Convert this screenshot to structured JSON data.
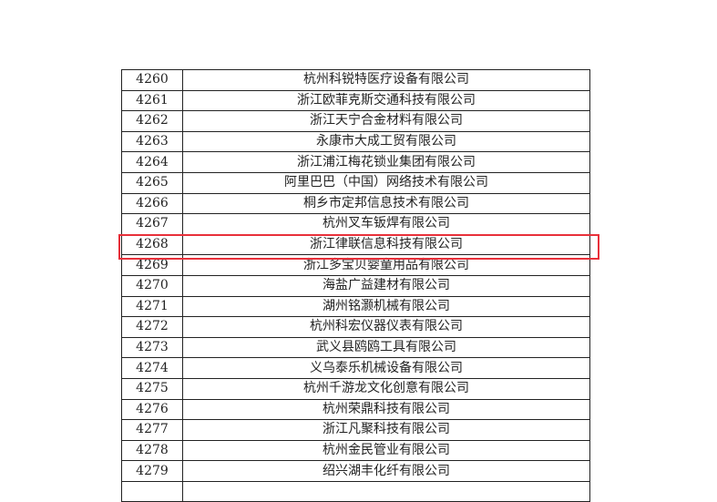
{
  "table": {
    "rows": [
      {
        "no": "4260",
        "name": "杭州科锐特医疗设备有限公司"
      },
      {
        "no": "4261",
        "name": "浙江欧菲克斯交通科技有限公司"
      },
      {
        "no": "4262",
        "name": "浙江天宁合金材料有限公司"
      },
      {
        "no": "4263",
        "name": "永康市大成工贸有限公司"
      },
      {
        "no": "4264",
        "name": "浙江浦江梅花锁业集团有限公司"
      },
      {
        "no": "4265",
        "name": "阿里巴巴（中国）网络技术有限公司"
      },
      {
        "no": "4266",
        "name": "桐乡市定邦信息技术有限公司"
      },
      {
        "no": "4267",
        "name": "杭州叉车钣焊有限公司"
      },
      {
        "no": "4268",
        "name": "浙江律联信息科技有限公司"
      },
      {
        "no": "4269",
        "name": "浙江多宝贝婴童用品有限公司"
      },
      {
        "no": "4270",
        "name": "海盐广益建材有限公司"
      },
      {
        "no": "4271",
        "name": "湖州铭灏机械有限公司"
      },
      {
        "no": "4272",
        "name": "杭州科宏仪器仪表有限公司"
      },
      {
        "no": "4273",
        "name": "武义县鸥鸥工具有限公司"
      },
      {
        "no": "4274",
        "name": "义乌泰乐机械设备有限公司"
      },
      {
        "no": "4275",
        "name": "杭州千游龙文化创意有限公司"
      },
      {
        "no": "4276",
        "name": "杭州荣鼎科技有限公司"
      },
      {
        "no": "4277",
        "name": "浙江凡聚科技有限公司"
      },
      {
        "no": "4278",
        "name": "杭州金民管业有限公司"
      },
      {
        "no": "4279",
        "name": "绍兴湖丰化纤有限公司"
      }
    ]
  },
  "highlight": {
    "row_no": "4268",
    "color": "#e8303a"
  }
}
